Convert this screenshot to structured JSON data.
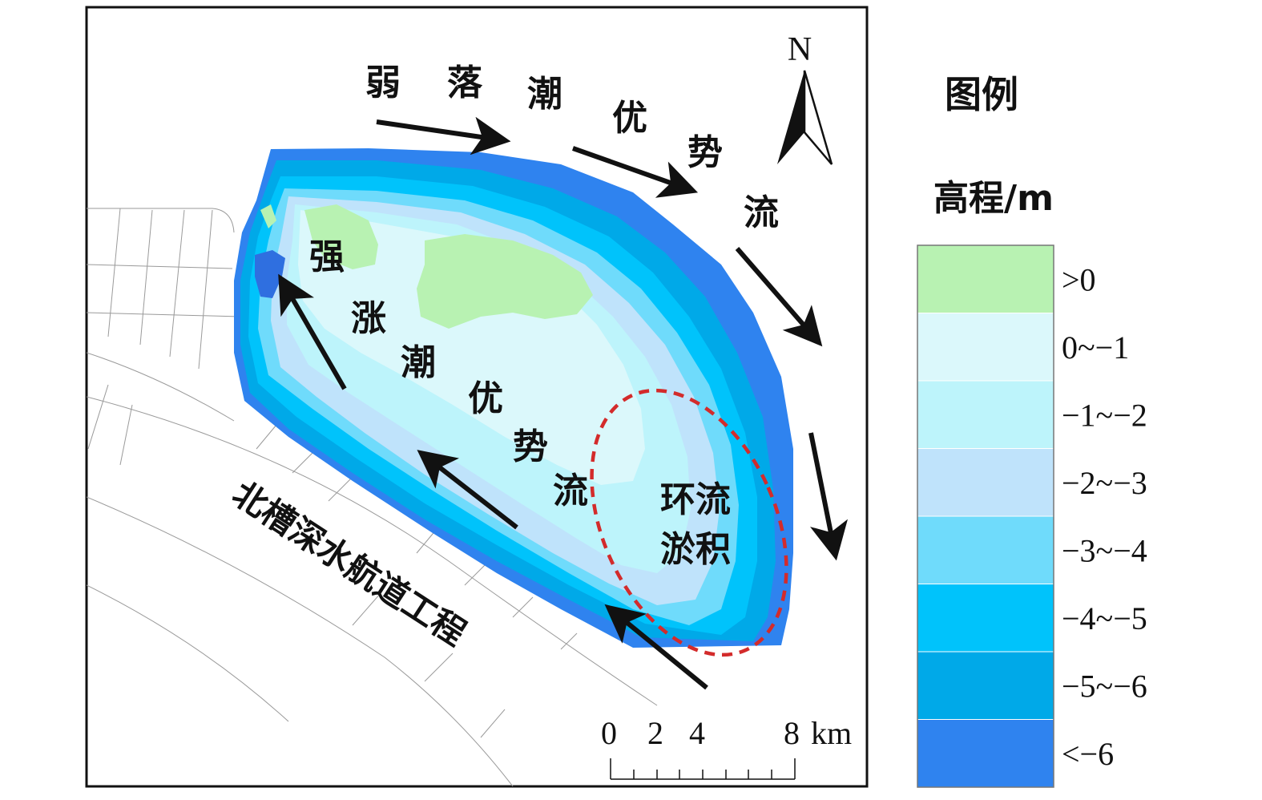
{
  "map": {
    "outflow_label_chars": [
      "弱",
      "落",
      "潮",
      "优",
      "势",
      "流"
    ],
    "inflow_label_chars": [
      "强",
      "涨",
      "潮",
      "优",
      "势",
      "流"
    ],
    "eddy_label_lines": [
      "环流",
      "淤积"
    ],
    "channel_label": "北槽深水航道工程",
    "north_label": "N"
  },
  "scale_bar": {
    "ticks": [
      "0",
      "2",
      "4",
      "8"
    ],
    "unit": "km"
  },
  "legend": {
    "title": "图例",
    "subtitle": "高程/m",
    "items": [
      {
        "label": ">0",
        "color": "#b8f2b2"
      },
      {
        "label": "0~−1",
        "color": "#dbf8fb"
      },
      {
        "label": "−1~−2",
        "color": "#bdf4fb"
      },
      {
        "label": "−2~−3",
        "color": "#bfe3fb"
      },
      {
        "label": "−3~−4",
        "color": "#6fdbfb"
      },
      {
        "label": "−4~−5",
        "color": "#00c3fb"
      },
      {
        "label": "−5~−6",
        "color": "#00a9e8"
      },
      {
        "label": "<−6",
        "color": "#2f83ef"
      }
    ]
  }
}
